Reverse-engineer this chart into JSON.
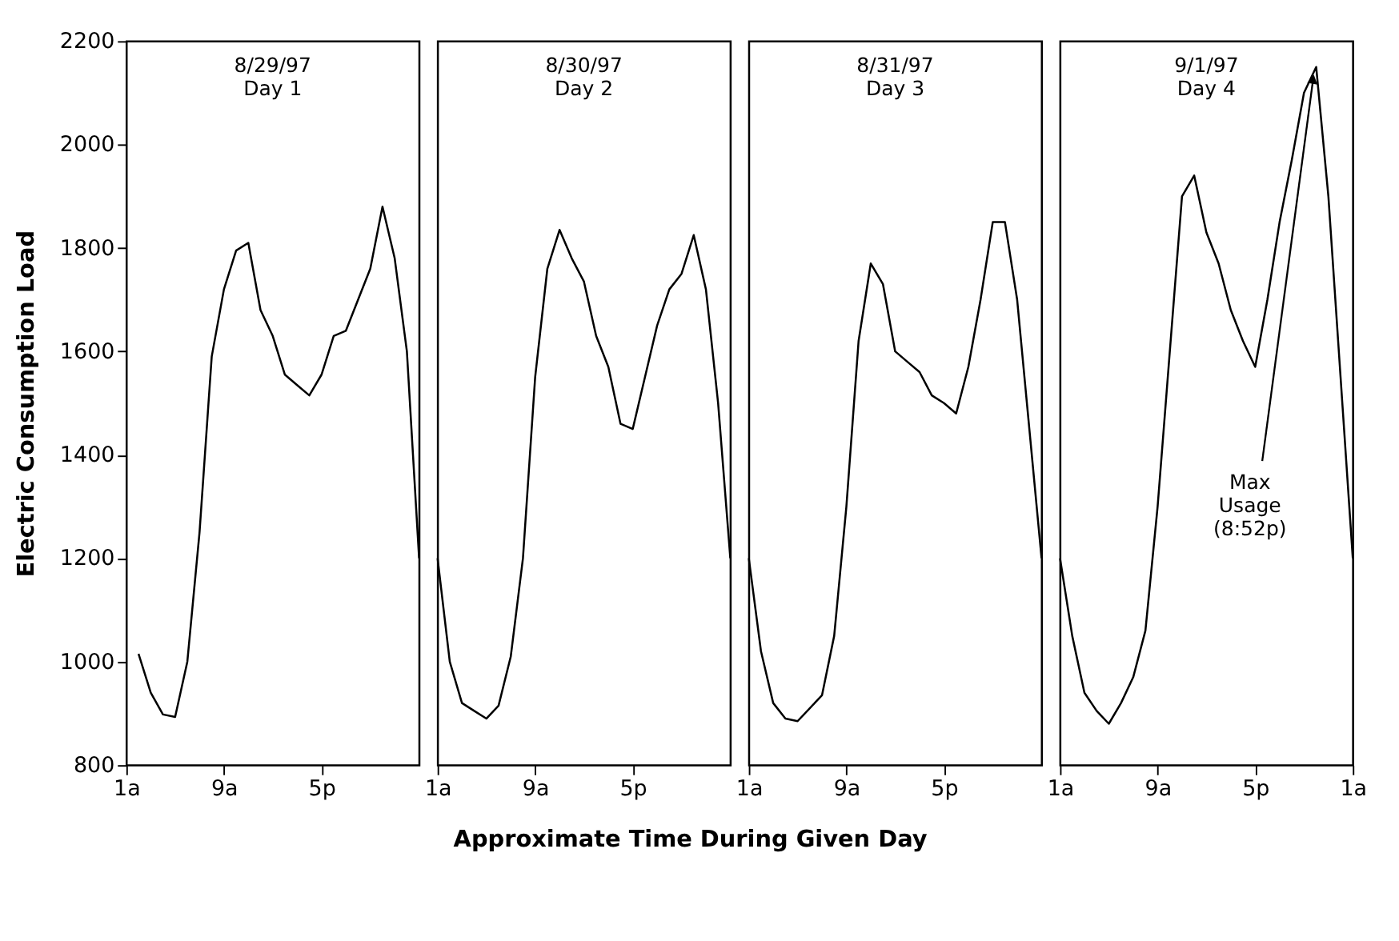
{
  "chart_data": [
    {
      "type": "line",
      "title": "8/29/97\nDay 1",
      "ylabel": "Electric Consumption Load",
      "xlabel": "Approximate Time During Given Day",
      "categories": [
        "1a",
        null,
        null,
        null,
        null,
        null,
        null,
        null,
        "9a",
        null,
        null,
        null,
        null,
        null,
        null,
        null,
        "5p",
        null,
        null,
        null,
        null,
        null,
        null,
        null,
        null
      ],
      "series": [
        {
          "color": "#000000",
          "values": [
            null,
            1015,
            940,
            898,
            893,
            1000,
            1250,
            1590,
            1720,
            1795,
            1810,
            1680,
            1630,
            1555,
            1535,
            1515,
            1555,
            1630,
            1640,
            1700,
            1760,
            1880,
            1780,
            1600,
            1200
          ]
        }
      ],
      "ylim": [
        800,
        2200
      ],
      "yticks": [
        800,
        1000,
        1200,
        1400,
        1600,
        1800,
        2000,
        2200
      ],
      "marker": "none",
      "line_style": "solid"
    },
    {
      "type": "line",
      "title": "8/30/97\nDay 2",
      "categories": [
        "1a",
        null,
        null,
        null,
        null,
        null,
        null,
        null,
        "9a",
        null,
        null,
        null,
        null,
        null,
        null,
        null,
        "5p",
        null,
        null,
        null,
        null,
        null,
        null,
        null,
        null
      ],
      "series": [
        {
          "color": "#000000",
          "values": [
            1200,
            1000,
            920,
            905,
            890,
            915,
            1010,
            1200,
            1550,
            1760,
            1835,
            1780,
            1735,
            1630,
            1570,
            1460,
            1450,
            1550,
            1650,
            1720,
            1750,
            1825,
            1720,
            1500,
            1200
          ]
        }
      ],
      "ylim": [
        800,
        2200
      ],
      "yticks": [
        800,
        1000,
        1200,
        1400,
        1600,
        1800,
        2000,
        2200
      ],
      "tick_labels": "x",
      "marker": "none",
      "line_style": "solid"
    },
    {
      "type": "line",
      "title": "8/31/97\nDay 3",
      "categories": [
        "1a",
        null,
        null,
        null,
        null,
        null,
        null,
        null,
        "9a",
        null,
        null,
        null,
        null,
        null,
        null,
        null,
        "5p",
        null,
        null,
        null,
        null,
        null,
        null,
        null,
        null
      ],
      "series": [
        {
          "color": "#000000",
          "values": [
            1200,
            1020,
            920,
            890,
            885,
            910,
            935,
            1050,
            1300,
            1620,
            1770,
            1730,
            1600,
            1580,
            1560,
            1515,
            1500,
            1480,
            1570,
            1700,
            1850,
            1850,
            1700,
            1450,
            1200
          ]
        }
      ],
      "ylim": [
        800,
        2200
      ],
      "yticks": [
        800,
        1000,
        1200,
        1400,
        1600,
        1800,
        2000,
        2200
      ],
      "tick_labels": "x",
      "marker": "none",
      "line_style": "solid"
    },
    {
      "type": "line",
      "title": "9/1/97\nDay 4",
      "categories": [
        "1a",
        null,
        null,
        null,
        null,
        null,
        null,
        null,
        "9a",
        null,
        null,
        null,
        null,
        null,
        null,
        null,
        "5p",
        null,
        null,
        null,
        null,
        null,
        null,
        null,
        "1a"
      ],
      "series": [
        {
          "color": "#000000",
          "values": [
            1200,
            1050,
            940,
            905,
            880,
            920,
            970,
            1060,
            1300,
            1600,
            1900,
            1940,
            1830,
            1770,
            1680,
            1620,
            1570,
            1700,
            1850,
            1970,
            2100,
            2150,
            1900,
            1550,
            1200
          ]
        }
      ],
      "ylim": [
        800,
        2200
      ],
      "yticks": [
        800,
        1000,
        1200,
        1400,
        1600,
        1800,
        2000,
        2200
      ],
      "tick_labels": "x",
      "marker": "none",
      "line_style": "solid",
      "annotations": [
        "Max\nUsage\n(8:52p)"
      ]
    }
  ]
}
